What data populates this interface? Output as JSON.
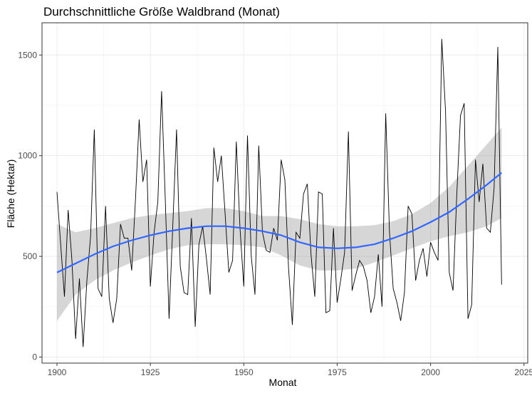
{
  "chart_data": {
    "type": "line",
    "title": "Durchschnittliche Größe Waldbrand (Monat)",
    "xlabel": "Monat",
    "ylabel": "Fläche (Hektar)",
    "xlim": [
      1896,
      2026
    ],
    "ylim": [
      -30,
      1660
    ],
    "x_ticks": [
      1900,
      1925,
      1950,
      1975,
      2000,
      2025
    ],
    "y_ticks": [
      0,
      500,
      1000,
      1500
    ],
    "x_tick_labels": [
      "1900",
      "1925",
      "1950",
      "1975",
      "2000",
      "2025"
    ],
    "y_tick_labels": [
      "0",
      "500",
      "1000",
      "1500"
    ],
    "grid": true,
    "legend": "none",
    "series": [
      {
        "type": "line",
        "color": "#000000",
        "x": [
          1900,
          1901,
          1902,
          1903,
          1904,
          1905,
          1906,
          1907,
          1908,
          1909,
          1910,
          1911,
          1912,
          1913,
          1914,
          1915,
          1916,
          1917,
          1918,
          1919,
          1920,
          1921,
          1922,
          1923,
          1924,
          1925,
          1926,
          1927,
          1928,
          1929,
          1930,
          1931,
          1932,
          1933,
          1934,
          1935,
          1936,
          1937,
          1938,
          1939,
          1940,
          1941,
          1942,
          1943,
          1944,
          1945,
          1946,
          1947,
          1948,
          1949,
          1950,
          1951,
          1952,
          1953,
          1954,
          1955,
          1956,
          1957,
          1958,
          1959,
          1960,
          1961,
          1962,
          1963,
          1964,
          1965,
          1966,
          1967,
          1968,
          1969,
          1970,
          1971,
          1972,
          1973,
          1974,
          1975,
          1976,
          1977,
          1978,
          1979,
          1980,
          1981,
          1982,
          1983,
          1984,
          1985,
          1986,
          1987,
          1988,
          1989,
          1990,
          1991,
          1992,
          1993,
          1994,
          1995,
          1996,
          1997,
          1998,
          1999,
          2000,
          2001,
          2002,
          2003,
          2004,
          2005,
          2006,
          2007,
          2008,
          2009,
          2010,
          2011,
          2012,
          2013,
          2014,
          2015,
          2016,
          2017,
          2018,
          2019
        ],
        "y": [
          820,
          560,
          300,
          730,
          480,
          90,
          390,
          50,
          380,
          600,
          1130,
          340,
          300,
          750,
          290,
          170,
          290,
          660,
          590,
          590,
          430,
          780,
          1180,
          870,
          980,
          350,
          620,
          770,
          1320,
          780,
          190,
          650,
          1130,
          450,
          320,
          310,
          690,
          150,
          560,
          650,
          490,
          310,
          1040,
          870,
          1000,
          710,
          420,
          480,
          1070,
          640,
          350,
          1100,
          500,
          310,
          1050,
          620,
          530,
          520,
          640,
          580,
          980,
          880,
          440,
          160,
          620,
          590,
          810,
          860,
          510,
          300,
          820,
          810,
          220,
          230,
          640,
          270,
          390,
          520,
          1120,
          330,
          410,
          480,
          450,
          380,
          220,
          300,
          510,
          250,
          1210,
          620,
          340,
          270,
          180,
          320,
          750,
          710,
          380,
          480,
          540,
          400,
          570,
          520,
          480,
          1580,
          1220,
          420,
          330,
          800,
          1200,
          1260,
          190,
          260,
          980,
          770,
          960,
          640,
          620,
          840,
          1540,
          360
        ]
      }
    ],
    "smooth": {
      "method": "loess",
      "color": "#3366FF",
      "x": [
        1900,
        1905,
        1910,
        1915,
        1920,
        1925,
        1930,
        1935,
        1940,
        1945,
        1950,
        1955,
        1960,
        1965,
        1970,
        1975,
        1980,
        1985,
        1990,
        1995,
        2000,
        2005,
        2010,
        2015,
        2019
      ],
      "y": [
        420,
        465,
        510,
        550,
        580,
        605,
        625,
        640,
        650,
        650,
        640,
        625,
        605,
        570,
        545,
        540,
        545,
        560,
        590,
        625,
        670,
        720,
        785,
        855,
        915
      ],
      "ymin": [
        180,
        310,
        380,
        430,
        470,
        505,
        535,
        555,
        560,
        560,
        555,
        545,
        505,
        455,
        430,
        430,
        440,
        470,
        505,
        540,
        575,
        600,
        620,
        650,
        690
      ],
      "ymax": [
        660,
        620,
        640,
        665,
        690,
        705,
        715,
        725,
        740,
        740,
        725,
        700,
        700,
        685,
        660,
        650,
        650,
        655,
        675,
        710,
        765,
        845,
        950,
        1055,
        1140
      ]
    }
  }
}
